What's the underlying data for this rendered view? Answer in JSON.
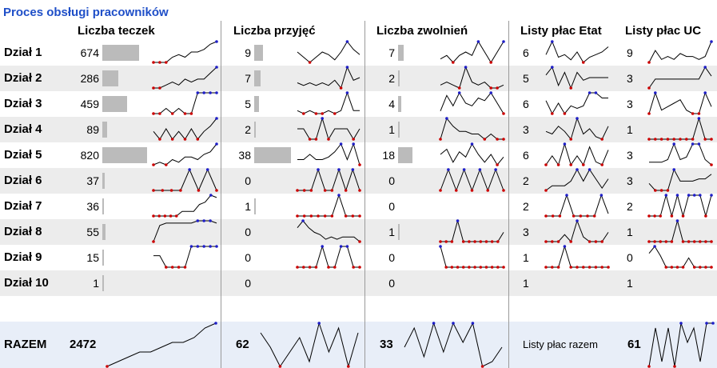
{
  "title": "Proces obsługi pracowników",
  "columns": {
    "teczki": "Liczba teczek",
    "przyjecia": "Liczba przyjęć",
    "zwolnienia": "Liczba zwolnień",
    "etat": "Listy płac Etat",
    "uc": "Listy płac UC"
  },
  "rows": [
    {
      "name": "Dział 1",
      "teczki": 674,
      "przyjecia": 9,
      "zwolnienia": 7,
      "etat": 6,
      "uc": 9,
      "sp": {
        "t": [
          2,
          2,
          2,
          4,
          5,
          4,
          6,
          6,
          7,
          9,
          10
        ],
        "p": [
          6,
          4,
          2,
          4,
          6,
          5,
          3,
          6,
          10,
          7,
          5
        ],
        "z": [
          4,
          5,
          3,
          5,
          6,
          5,
          9,
          6,
          3,
          6,
          9
        ],
        "e": [
          5,
          10,
          4,
          5,
          3,
          6,
          2,
          4,
          5,
          6,
          8
        ],
        "u": [
          3,
          7,
          4,
          5,
          4,
          6,
          5,
          5,
          4,
          5,
          10
        ]
      }
    },
    {
      "name": "Dział 2",
      "teczki": 286,
      "przyjecia": 7,
      "zwolnienia": 2,
      "etat": 5,
      "uc": 3,
      "sp": {
        "t": [
          3,
          3,
          4,
          5,
          4,
          6,
          5,
          6,
          6,
          8,
          10
        ],
        "p": [
          4,
          3,
          4,
          3,
          4,
          3,
          5,
          2,
          10,
          5,
          6
        ],
        "z": [
          4,
          5,
          4,
          3,
          10,
          5,
          4,
          5,
          3,
          3,
          4
        ],
        "e": [
          7,
          10,
          3,
          8,
          2,
          8,
          5,
          6,
          6,
          6,
          6
        ],
        "u": [
          2,
          5,
          5,
          5,
          5,
          5,
          5,
          5,
          5,
          9,
          6
        ]
      }
    },
    {
      "name": "Dział 3",
      "teczki": 459,
      "przyjecia": 5,
      "zwolnienia": 4,
      "etat": 6,
      "uc": 3,
      "sp": {
        "t": [
          2,
          2,
          3,
          2,
          3,
          2,
          2,
          6,
          6,
          6,
          6
        ],
        "p": [
          4,
          3,
          4,
          3,
          3,
          4,
          3,
          4,
          10,
          4,
          4
        ],
        "z": [
          3,
          9,
          5,
          10,
          6,
          5,
          8,
          7,
          10,
          6,
          2
        ],
        "e": [
          7,
          2,
          6,
          2,
          5,
          4,
          5,
          10,
          10,
          8,
          8
        ],
        "u": [
          4,
          10,
          5,
          6,
          7,
          8,
          5,
          4,
          4,
          10,
          6
        ]
      }
    },
    {
      "name": "Dział 4",
      "teczki": 89,
      "przyjecia": 2,
      "zwolnienia": 1,
      "etat": 3,
      "uc": 1,
      "sp": {
        "t": [
          5,
          2,
          6,
          2,
          5,
          2,
          6,
          2,
          5,
          7,
          10
        ],
        "p": [
          6,
          6,
          2,
          2,
          10,
          2,
          6,
          6,
          6,
          2,
          6
        ],
        "z": [
          2,
          10,
          7,
          5,
          5,
          4,
          4,
          2,
          4,
          2,
          2
        ],
        "e": [
          5,
          4,
          7,
          5,
          2,
          10,
          4,
          6,
          3,
          2,
          7
        ],
        "u": [
          1,
          1,
          1,
          1,
          1,
          1,
          1,
          1,
          10,
          1,
          1
        ]
      }
    },
    {
      "name": "Dział 5",
      "teczki": 820,
      "przyjecia": 38,
      "zwolnienia": 18,
      "etat": 6,
      "uc": 3,
      "sp": {
        "t": [
          2,
          3,
          2,
          4,
          3,
          5,
          5,
          4,
          6,
          7,
          10
        ],
        "p": [
          4,
          4,
          6,
          4,
          4,
          5,
          7,
          10,
          4,
          10,
          2
        ],
        "z": [
          6,
          8,
          3,
          7,
          5,
          10,
          6,
          3,
          6,
          2,
          5
        ],
        "e": [
          3,
          6,
          3,
          10,
          3,
          6,
          3,
          9,
          4,
          3,
          8
        ],
        "u": [
          3,
          3,
          3,
          4,
          10,
          4,
          5,
          10,
          10,
          4,
          2
        ]
      }
    },
    {
      "name": "Dział 6",
      "teczki": 37,
      "przyjecia": 0,
      "zwolnienia": 0,
      "etat": 2,
      "uc": 3,
      "sp": {
        "t": [
          1,
          1,
          1,
          1,
          10,
          1,
          10,
          1
        ],
        "p": [
          1,
          1,
          1,
          10,
          1,
          1,
          10,
          1,
          10,
          1
        ],
        "z": [
          1,
          10,
          1,
          10,
          1,
          10,
          1,
          10,
          1
        ],
        "e": [
          1,
          3,
          3,
          3,
          5,
          10,
          5,
          10,
          6,
          2,
          6
        ],
        "u": [
          4,
          1,
          1,
          1,
          10,
          5,
          5,
          5,
          6,
          6,
          8
        ]
      }
    },
    {
      "name": "Dział 7",
      "teczki": 36,
      "przyjecia": 1,
      "zwolnienia": 0,
      "etat": 2,
      "uc": 2,
      "sp": {
        "t": [
          1,
          1,
          1,
          1,
          1,
          3,
          3,
          3,
          6,
          7,
          10,
          9
        ],
        "p": [
          1,
          1,
          1,
          1,
          1,
          1,
          10,
          1,
          1,
          1
        ],
        "z": [],
        "e": [
          1,
          1,
          1,
          10,
          1,
          1,
          1,
          1,
          10,
          2
        ],
        "u": [
          1,
          1,
          1,
          10,
          1,
          10,
          1,
          10,
          10,
          10,
          1,
          10
        ]
      }
    },
    {
      "name": "Dział 8",
      "teczki": 55,
      "przyjecia": 0,
      "zwolnienia": 1,
      "etat": 3,
      "uc": 1,
      "sp": {
        "t": [
          1,
          8,
          9,
          9,
          9,
          9,
          9,
          10,
          10,
          10,
          9
        ],
        "p": [
          7,
          10,
          7,
          5,
          4,
          2,
          3,
          2,
          3,
          3,
          3,
          1
        ],
        "z": [
          1,
          1,
          1,
          10,
          1,
          1,
          1,
          1,
          1,
          1,
          1,
          5
        ],
        "e": [
          1,
          1,
          1,
          4,
          1,
          10,
          3,
          1,
          1,
          1,
          5
        ],
        "u": [
          1,
          1,
          1,
          1,
          1,
          10,
          1,
          1,
          1,
          1,
          1,
          1
        ]
      }
    },
    {
      "name": "Dział 9",
      "teczki": 15,
      "przyjecia": 0,
      "zwolnienia": 0,
      "etat": 1,
      "uc": 0,
      "sp": {
        "t": [
          6,
          6,
          1,
          1,
          1,
          1,
          10,
          10,
          10,
          10,
          10
        ],
        "p": [
          1,
          1,
          1,
          1,
          10,
          1,
          1,
          10,
          10,
          1,
          1
        ],
        "z": [
          10,
          1,
          1,
          1,
          1,
          1,
          1,
          1,
          1,
          1,
          1,
          1
        ],
        "e": [
          1,
          1,
          1,
          10,
          1,
          1,
          1,
          1,
          1,
          1,
          1
        ],
        "u": [
          7,
          10,
          6,
          1,
          1,
          1,
          1,
          5,
          1,
          1,
          1,
          1
        ]
      }
    },
    {
      "name": "Dział 10",
      "teczki": 1,
      "przyjecia": 0,
      "zwolnienia": 0,
      "etat": 1,
      "uc": 1,
      "sp": {
        "t": [],
        "p": [],
        "z": [],
        "e": [],
        "u": []
      }
    }
  ],
  "totals": {
    "label": "RAZEM",
    "teczki": 2472,
    "przyjecia": 62,
    "zwolnienia": 33,
    "listy_label": "Listy płac razem",
    "listy": 61,
    "sp": {
      "t": [
        1,
        2,
        3,
        4,
        4,
        5,
        6,
        6,
        7,
        9,
        10
      ],
      "p": [
        8,
        5,
        1,
        4,
        7,
        2,
        10,
        4,
        9,
        1,
        8
      ],
      "z": [
        5,
        9,
        3,
        10,
        4,
        10,
        6,
        10,
        1,
        2,
        5
      ],
      "u": [
        1,
        9,
        2,
        9,
        1,
        10,
        6,
        9,
        2,
        10,
        10
      ]
    }
  },
  "colors": {
    "title": "#1f4fc8",
    "bar": "#bbbbbb",
    "min_marker": "#cc0000",
    "max_marker": "#1f1fc8",
    "line": "#000000"
  }
}
